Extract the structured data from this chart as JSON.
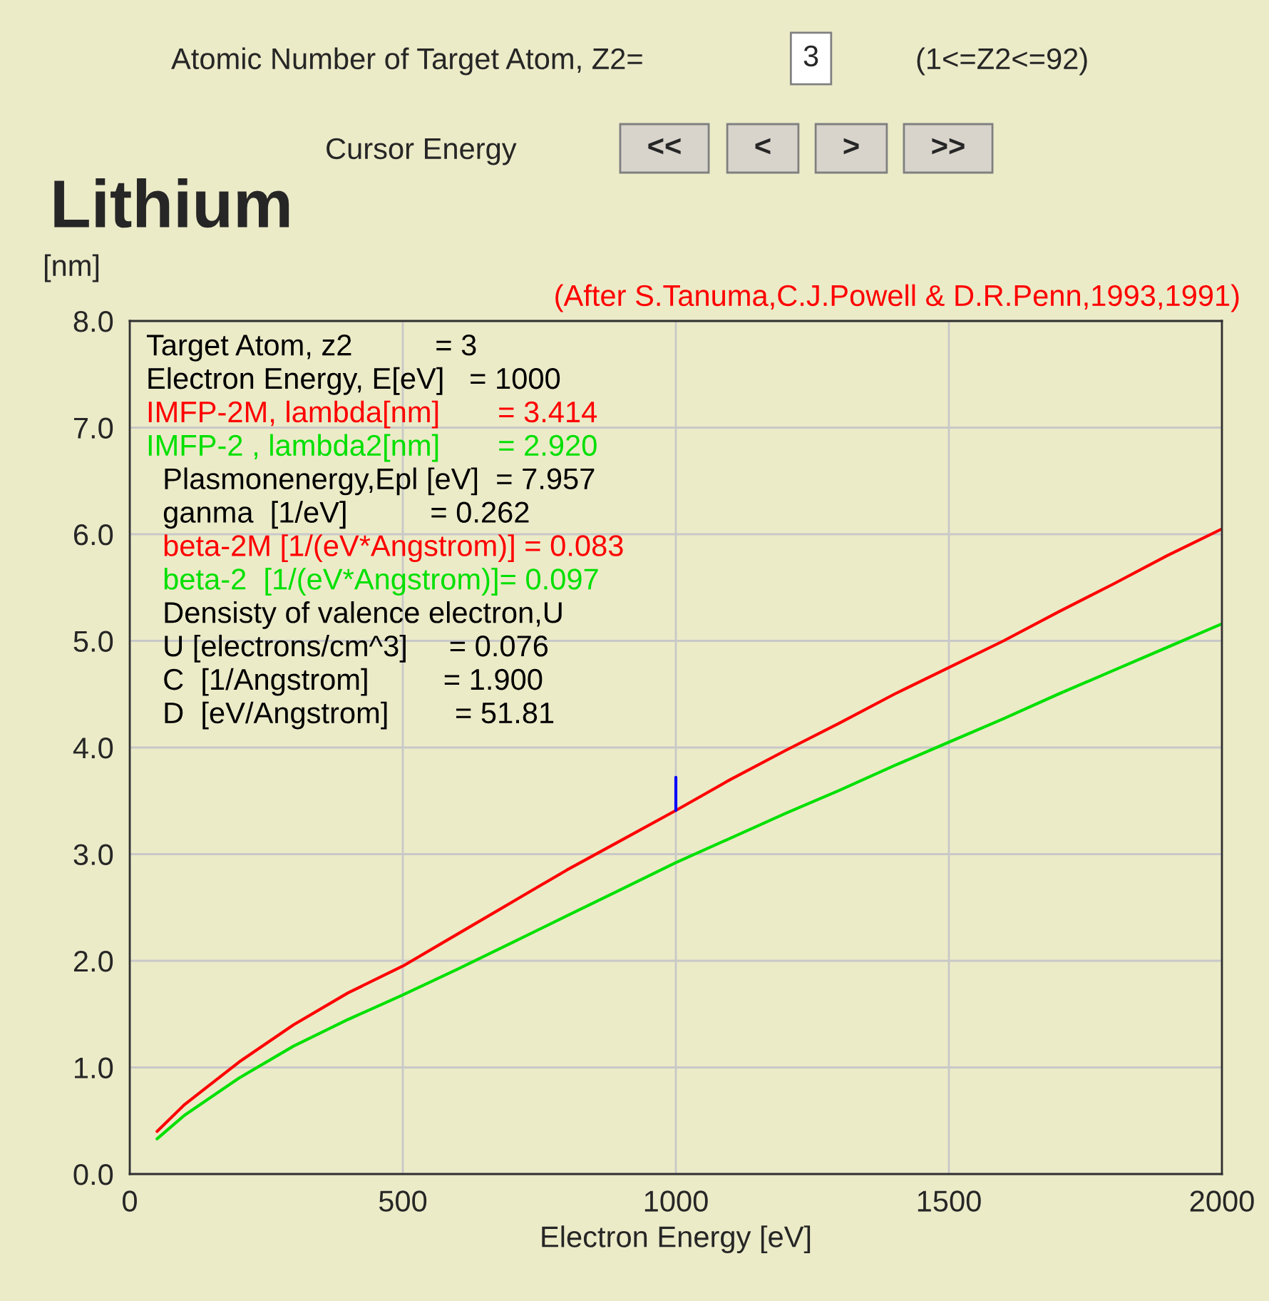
{
  "chart_data": {
    "type": "line",
    "title": "Lithium",
    "ylabel": "[nm]",
    "xlabel": "Electron Energy [eV]",
    "xlim": [
      0,
      2000
    ],
    "xticks": [
      0,
      500,
      1000,
      1500,
      2000
    ],
    "ylim": [
      0,
      8
    ],
    "yticks": [
      {
        "value": 0,
        "label": "0.0"
      },
      {
        "value": 1,
        "label": "1.0"
      },
      {
        "value": 2,
        "label": "2.0"
      },
      {
        "value": 3,
        "label": "3.0"
      },
      {
        "value": 4,
        "label": "4.0"
      },
      {
        "value": 5,
        "label": "5.0"
      },
      {
        "value": 6,
        "label": "6.0"
      },
      {
        "value": 7,
        "label": "7.0"
      },
      {
        "value": 8,
        "label": "8.0"
      }
    ],
    "grid": true,
    "marker": "none",
    "line_style": "solid",
    "series": [
      {
        "color": "#ff0000",
        "x": [
          50,
          100,
          200,
          300,
          400,
          500,
          600,
          700,
          800,
          900,
          1000,
          1100,
          1200,
          1300,
          1400,
          1500,
          1600,
          1700,
          1800,
          1900,
          2000
        ],
        "values": [
          0.4,
          0.65,
          1.05,
          1.4,
          1.7,
          1.95,
          2.25,
          2.55,
          2.85,
          3.13,
          3.41,
          3.7,
          3.97,
          4.23,
          4.5,
          4.75,
          5.0,
          5.27,
          5.53,
          5.8,
          6.05
        ]
      },
      {
        "color": "#00e000",
        "x": [
          50,
          100,
          200,
          300,
          400,
          500,
          600,
          700,
          800,
          900,
          1000,
          1100,
          1200,
          1300,
          1400,
          1500,
          1600,
          1700,
          1800,
          1900,
          2000
        ],
        "values": [
          0.33,
          0.55,
          0.9,
          1.2,
          1.45,
          1.68,
          1.92,
          2.17,
          2.42,
          2.67,
          2.92,
          3.15,
          3.38,
          3.6,
          3.83,
          4.05,
          4.27,
          4.5,
          4.72,
          4.94,
          5.16
        ]
      },
      {
        "color": "#0000ff",
        "x": [
          1000,
          1000
        ],
        "values": [
          3.41,
          3.72
        ]
      }
    ],
    "annotations": [
      "Atomic Number of Target Atom, Z2=",
      "3",
      "(1<=Z2<=92)",
      "Cursor Energy",
      "<<",
      "<",
      ">",
      ">>",
      "(After S.Tanuma,C.J.Powell & D.R.Penn,1993,1991)",
      "Target Atom, z2          = 3",
      "Electron Energy, E[eV]   = 1000",
      "IMFP-2M, lambda[nm]       = 3.414",
      "IMFP-2 , lambda2[nm]       = 2.920",
      "  Plasmonenergy,Epl [eV]  = 7.957",
      "  ganma  [1/eV]          = 0.262",
      "  beta-2M [1/(eV*Angstrom)] = 0.083",
      "  beta-2  [1/(eV*Angstrom)]= 0.097",
      "  Densisty of valence electron,U",
      "  U [electrons/cm^3]     = 0.076",
      "  C  [1/Angstrom]         = 1.900",
      "  D  [eV/Angstrom]        = 51.81"
    ]
  }
}
